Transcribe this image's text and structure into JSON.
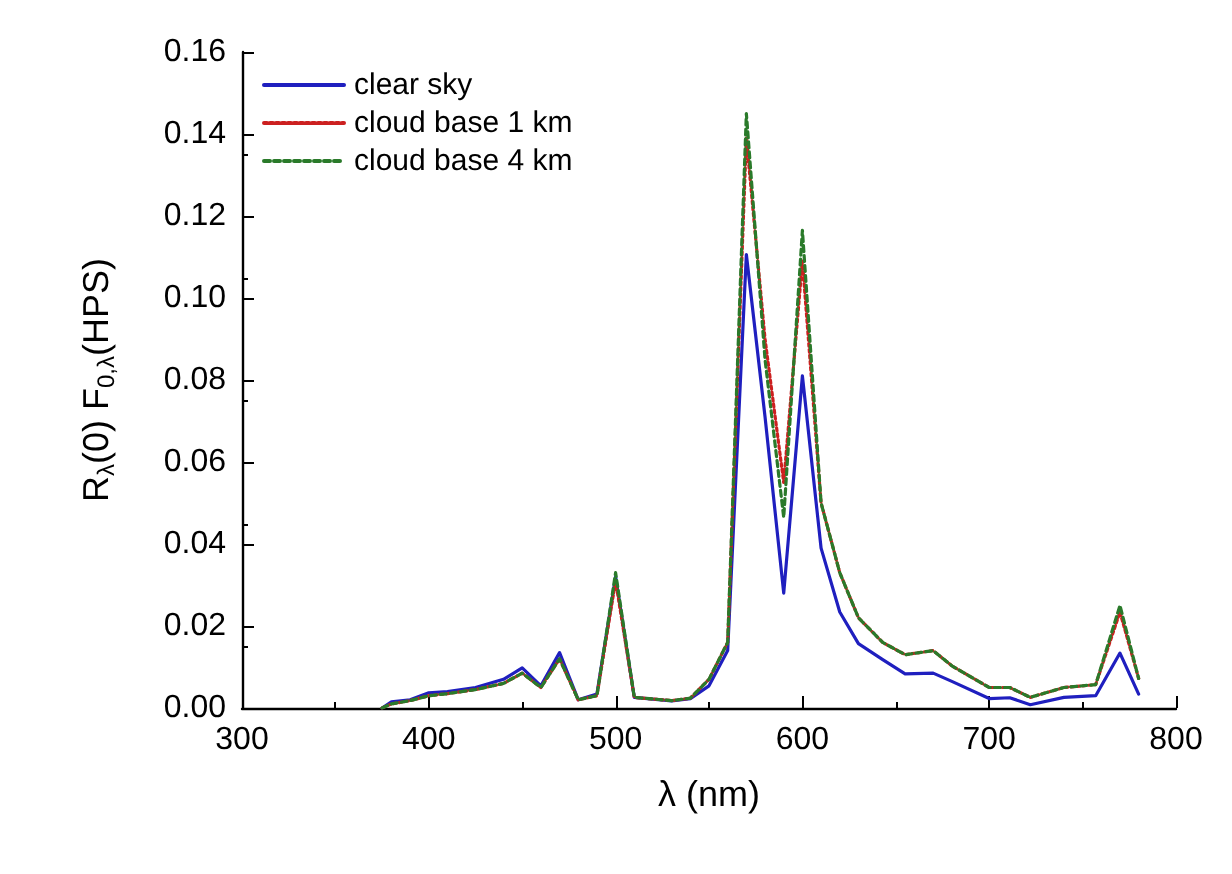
{
  "chart_data": {
    "type": "line",
    "xlabel": "λ (nm)",
    "ylabel": "R$_{λ}$(0) F$_{0,λ}$(HPS)",
    "x": [
      375,
      380,
      390,
      400,
      410,
      425,
      440,
      450,
      460,
      470,
      480,
      490,
      500,
      510,
      530,
      540,
      550,
      560,
      570,
      580,
      590,
      600,
      610,
      620,
      630,
      643,
      655,
      670,
      680,
      700,
      711,
      722,
      740,
      757,
      770,
      780
    ],
    "series": [
      {
        "name": "clear sky",
        "color": "#1f1fbf",
        "line_style": "solid",
        "values": [
          0,
          0.0015,
          0.002,
          0.0037,
          0.004,
          0.005,
          0.007,
          0.0098,
          0.0054,
          0.0135,
          0.002,
          0.0034,
          0.032,
          0.0026,
          0.0017,
          0.0023,
          0.0054,
          0.014,
          0.1106,
          0.071,
          0.028,
          0.081,
          0.039,
          0.0234,
          0.0157,
          0.0118,
          0.0083,
          0.0085,
          0.0065,
          0.0023,
          0.0025,
          0.0008,
          0.0026,
          0.003,
          0.0134,
          0.0034
        ]
      },
      {
        "name": "cloud base 1 km",
        "color": "#cc2020",
        "line_style": "dotted",
        "values": [
          0,
          0.001,
          0.0018,
          0.003,
          0.0035,
          0.0045,
          0.006,
          0.0085,
          0.005,
          0.012,
          0.002,
          0.003,
          0.031,
          0.0026,
          0.0018,
          0.0024,
          0.007,
          0.016,
          0.139,
          0.09,
          0.055,
          0.109,
          0.05,
          0.033,
          0.022,
          0.016,
          0.013,
          0.014,
          0.0103,
          0.005,
          0.005,
          0.0026,
          0.005,
          0.0057,
          0.0234,
          0.0072
        ]
      },
      {
        "name": "cloud base 4 km",
        "color": "#2a7a2a",
        "line_style": "dashed",
        "values": [
          0,
          0.001,
          0.0018,
          0.003,
          0.0035,
          0.0045,
          0.006,
          0.0085,
          0.005,
          0.012,
          0.002,
          0.003,
          0.033,
          0.0026,
          0.0018,
          0.0024,
          0.007,
          0.016,
          0.145,
          0.085,
          0.0465,
          0.1165,
          0.05,
          0.033,
          0.022,
          0.016,
          0.013,
          0.014,
          0.0103,
          0.005,
          0.005,
          0.0026,
          0.005,
          0.0057,
          0.025,
          0.0072
        ]
      }
    ],
    "xlim": [
      300,
      800
    ],
    "xticks": [
      300,
      400,
      500,
      600,
      700,
      800
    ],
    "ylim": [
      0,
      0.16
    ],
    "yticks": [
      {
        "value": 0,
        "label": "0.00"
      },
      {
        "value": 0.02,
        "label": "0.02"
      },
      {
        "value": 0.04,
        "label": "0.04"
      },
      {
        "value": 0.06,
        "label": "0.06"
      },
      {
        "value": 0.08,
        "label": "0.08"
      },
      {
        "value": 0.1,
        "label": "0.10"
      },
      {
        "value": 0.12,
        "label": "0.12"
      },
      {
        "value": 0.14,
        "label": "0.14"
      },
      {
        "value": 0.16,
        "label": "0.16"
      }
    ],
    "grid": false,
    "legend": "top left",
    "marker": "none"
  }
}
